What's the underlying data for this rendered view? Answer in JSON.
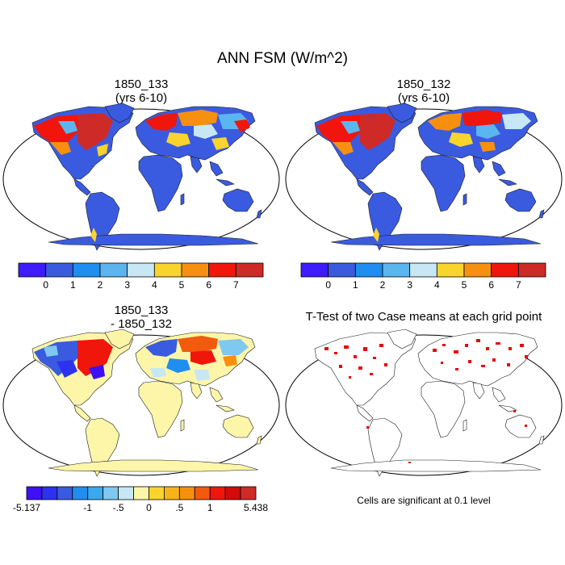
{
  "main_title": "ANN FSM (W/m^2)",
  "panels": {
    "top_left": {
      "line1": "1850_133",
      "line2": "(yrs 6-10)"
    },
    "top_right": {
      "line1": "1850_132",
      "line2": "(yrs 6-10)"
    },
    "bottom_left": {
      "line1": "1850_133",
      "line2": "- 1850_132"
    },
    "bottom_right": {
      "line1": "T-Test of two Case means at each grid point"
    }
  },
  "colorbar_abs": {
    "colors": [
      "#3f1bff",
      "#3a5be0",
      "#1f8ef0",
      "#5bb5ee",
      "#c7e7f5",
      "#f9d42c",
      "#f7900f",
      "#f0160c",
      "#ce2a27"
    ],
    "labels": [
      "0",
      "1",
      "2",
      "3",
      "4",
      "5",
      "6",
      "7"
    ]
  },
  "colorbar_diff": {
    "colors": [
      "#3d10f5",
      "#2d32ee",
      "#3a5be0",
      "#1f8ef0",
      "#3aa9ee",
      "#7ec8f2",
      "#c7e7f5",
      "#fdf6a8",
      "#f9d42c",
      "#f7b31a",
      "#f7900f",
      "#f25a0e",
      "#f0160c",
      "#d20a0a",
      "#ce2a27"
    ],
    "labels": [
      "-5.137",
      "-1",
      "-.5",
      "0",
      ".5",
      "1",
      "5.438"
    ]
  },
  "significance_note": "Cells are significant at 0.1 level",
  "colors": {
    "ocean_land_low": "#3a5be0",
    "diff_land": "#fdf6a8",
    "significant": "#e8080c"
  }
}
